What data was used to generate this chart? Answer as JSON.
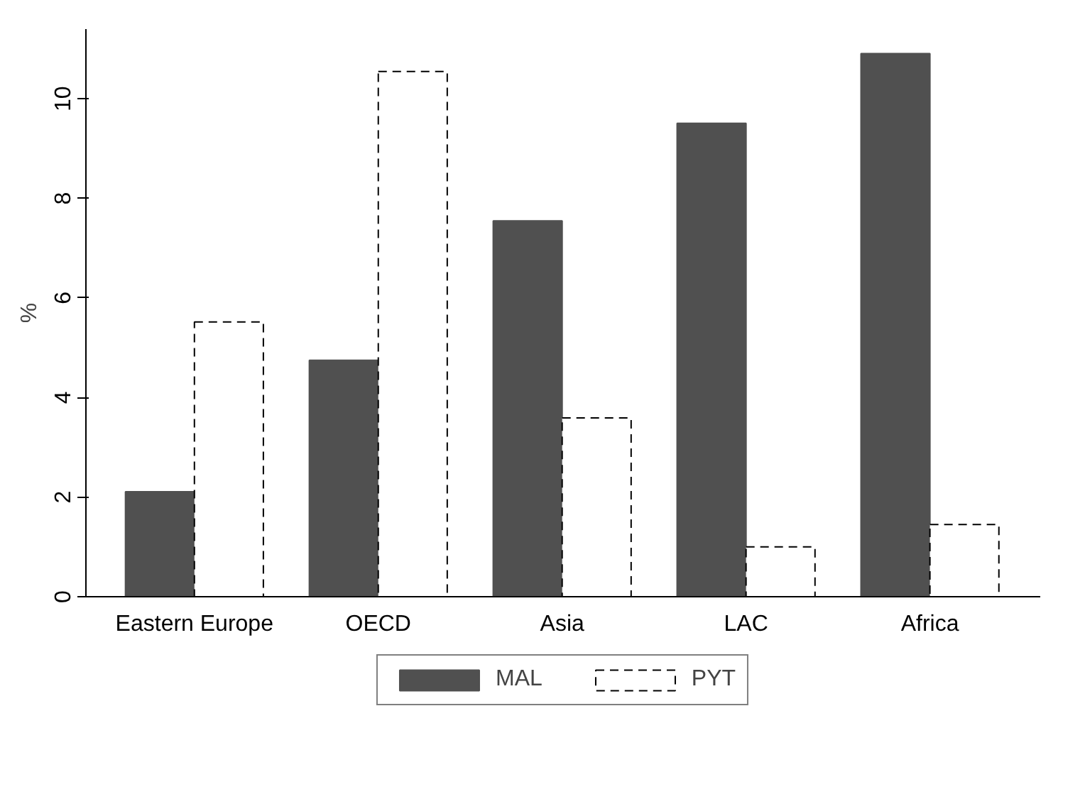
{
  "chart_data": {
    "type": "bar",
    "ylabel": "%",
    "categories": [
      "Eastern Europe",
      "OECD",
      "Asia",
      "LAC",
      "Africa"
    ],
    "series": [
      {
        "name": "MAL",
        "color": "#505050",
        "values": [
          2.11,
          4.75,
          7.55,
          9.51,
          10.91
        ]
      },
      {
        "name": "PYT",
        "color": "#ffffff",
        "values": [
          5.52,
          10.55,
          3.59,
          1.0,
          1.45
        ],
        "line_style": "dashed"
      }
    ],
    "ylim": [
      0,
      11.4
    ],
    "yticks": [
      0,
      2,
      4,
      6,
      8,
      10
    ],
    "grid": false,
    "legend": "bottom"
  }
}
